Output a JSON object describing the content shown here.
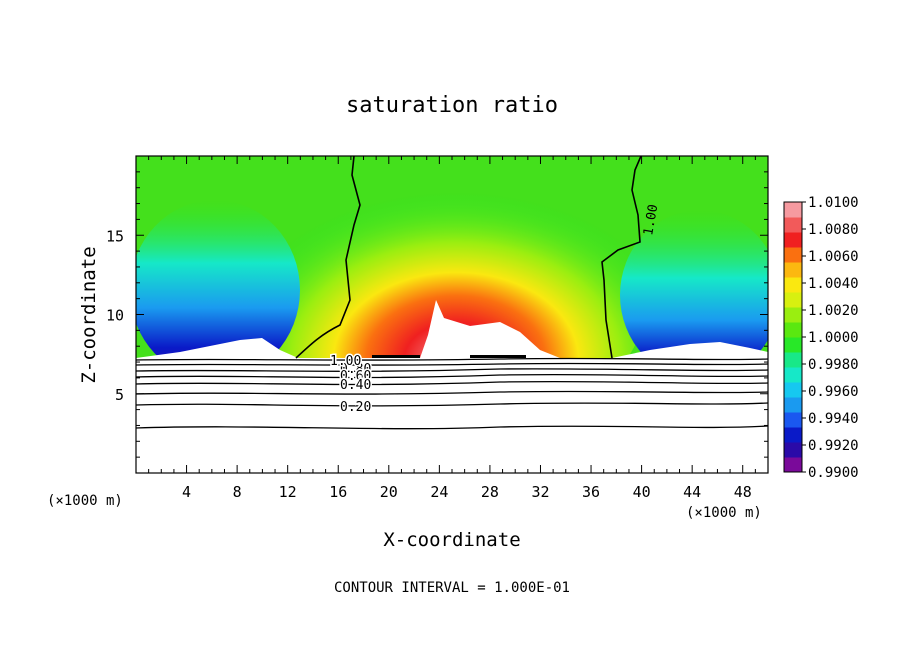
{
  "chart_data": {
    "type": "heatmap",
    "title": "saturation ratio",
    "xlabel": "X-coordinate",
    "ylabel": "Z-coordinate",
    "x_unit_left": "(×1000 m)",
    "x_unit_right": "(×1000 m)",
    "footer": "CONTOUR INTERVAL = 1.000E-01",
    "xlim": [
      0,
      50
    ],
    "ylim": [
      0,
      20
    ],
    "x_ticks": [
      4,
      8,
      12,
      16,
      20,
      24,
      28,
      32,
      36,
      40,
      44,
      48
    ],
    "y_ticks": [
      5,
      10,
      15
    ],
    "colorbar": {
      "range": [
        0.99,
        1.01
      ],
      "labels": [
        "1.0100",
        "1.0080",
        "1.0060",
        "1.0040",
        "1.0020",
        "1.0000",
        "0.9980",
        "0.9960",
        "0.9940",
        "0.9920",
        "0.9900"
      ],
      "colors": [
        "#7a0a9a",
        "#2a0aa8",
        "#0a1ac8",
        "#1a58f0",
        "#1a9af0",
        "#16c8f0",
        "#16e8c8",
        "#18e888",
        "#28e828",
        "#5ae810",
        "#9aee10",
        "#d8f010",
        "#fae810",
        "#fcb810",
        "#fa7010",
        "#f02020",
        "#f25a5a",
        "#f69aa0"
      ]
    },
    "contours": [
      {
        "value": 0.2,
        "label": "0.20"
      },
      {
        "value": 0.4,
        "label": "0.40"
      },
      {
        "value": 0.6,
        "label": "0.60"
      },
      {
        "value": 0.8,
        "label": "0.80"
      },
      {
        "value": 1.0,
        "label": "1.00"
      },
      {
        "value": 1.0,
        "label": "1.00"
      }
    ],
    "below_cloud_z": [
      3.0,
      4.4,
      5.0,
      5.4,
      5.8,
      6.2,
      6.5,
      6.8,
      7.0
    ]
  }
}
